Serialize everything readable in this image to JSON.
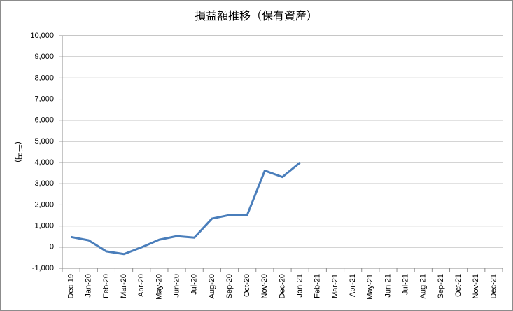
{
  "chart_data": {
    "type": "line",
    "title": "損益額推移（保有資産）",
    "y_label": "(千円)",
    "categories": [
      "Dec-19",
      "Jan-20",
      "Feb-20",
      "Mar-20",
      "Apr-20",
      "May-20",
      "Jun-20",
      "Jul-20",
      "Aug-20",
      "Sep-20",
      "Oct-20",
      "Nov-20",
      "Dec-20",
      "Jan-21",
      "Feb-21",
      "Mar-21",
      "Apr-21",
      "May-21",
      "Jun-21",
      "Jul-21",
      "Aug-21",
      "Sep-21",
      "Oct-21",
      "Nov-21",
      "Dec-21"
    ],
    "values": [
      480,
      320,
      -200,
      -330,
      -10,
      350,
      520,
      450,
      1350,
      1520,
      1520,
      3620,
      3320,
      4000,
      null,
      null,
      null,
      null,
      null,
      null,
      null,
      null,
      null,
      null,
      null
    ],
    "color": "#4a7ebb",
    "ylim": [
      -1000,
      10000
    ],
    "yticks": [
      {
        "value": -1000,
        "label": "-1,000"
      },
      0,
      {
        "value": 1000,
        "label": "1,000"
      },
      {
        "value": 2000,
        "label": "2,000"
      },
      {
        "value": 3000,
        "label": "3,000"
      },
      {
        "value": 4000,
        "label": "4,000"
      },
      {
        "value": 5000,
        "label": "5,000"
      },
      {
        "value": 6000,
        "label": "6,000"
      },
      {
        "value": 7000,
        "label": "7,000"
      },
      {
        "value": 8000,
        "label": "8,000"
      },
      {
        "value": 9000,
        "label": "9,000"
      },
      {
        "value": 10000,
        "label": "10,000"
      }
    ],
    "grid": true
  }
}
